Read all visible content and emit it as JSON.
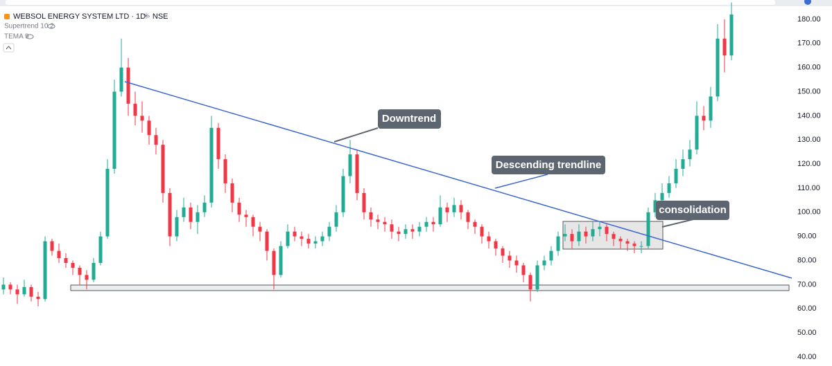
{
  "chart_data": {
    "type": "candlestick",
    "title": "WEBSOL ENERGY SYSTEM LTD · 1D · NSE",
    "indicators": [
      "Supertrend 10 2",
      "TEMA 9"
    ],
    "annotations": [
      "Downtrend",
      "Descending trendline",
      "consolidation"
    ],
    "up_color": "#22ab94",
    "down_color": "#f23645",
    "ylim": [
      37.7,
      188
    ],
    "yticks": [
      {
        "value": 40,
        "label": "40.00"
      },
      {
        "value": 50,
        "label": "50.00"
      },
      {
        "value": 60,
        "label": "60.00"
      },
      {
        "value": 70,
        "label": "70.00"
      },
      {
        "value": 80,
        "label": "80.00"
      },
      {
        "value": 90,
        "label": "90.00"
      },
      {
        "value": 100,
        "label": "100.00"
      },
      {
        "value": 110,
        "label": "110.00"
      },
      {
        "value": 120,
        "label": "120.00"
      },
      {
        "value": 130,
        "label": "130.00"
      },
      {
        "value": 140,
        "label": "140.00"
      },
      {
        "value": 150,
        "label": "150.00"
      },
      {
        "value": 160,
        "label": "160.00"
      },
      {
        "value": 170,
        "label": "170.00"
      },
      {
        "value": 180,
        "label": "180.00"
      }
    ],
    "open": [
      68,
      70,
      68,
      66,
      69,
      65,
      64,
      88,
      84,
      81,
      79,
      77,
      74,
      72,
      79,
      90,
      118,
      150,
      160,
      145,
      140,
      138,
      132,
      128,
      108,
      90,
      98,
      102,
      96,
      100,
      104,
      135,
      122,
      112,
      104,
      99,
      98,
      94,
      92,
      84,
      74,
      86,
      92,
      90,
      89,
      87,
      88,
      90,
      94,
      100,
      115,
      124,
      108,
      100,
      97,
      96,
      95,
      92,
      91,
      93,
      92,
      94,
      96,
      95,
      102,
      100,
      103,
      100,
      96,
      94,
      90,
      88,
      85,
      82,
      80,
      78,
      74,
      68,
      78,
      80,
      84,
      90,
      91,
      88,
      92,
      90,
      93,
      94,
      91,
      89,
      88,
      87,
      86,
      86,
      100,
      105,
      108,
      112,
      118,
      122,
      126,
      140,
      138,
      148,
      172,
      165
    ],
    "high": [
      73,
      71,
      70,
      72,
      70,
      67,
      90,
      89,
      87,
      83,
      80,
      78,
      76,
      81,
      92,
      122,
      155,
      172,
      164,
      150,
      146,
      140,
      135,
      130,
      110,
      101,
      106,
      104,
      103,
      107,
      140,
      137,
      124,
      114,
      106,
      101,
      99,
      96,
      93,
      85,
      88,
      95,
      94,
      92,
      91,
      90,
      92,
      96,
      103,
      118,
      130,
      126,
      110,
      102,
      99,
      98,
      97,
      94,
      95,
      95,
      96,
      98,
      98,
      107,
      104,
      106,
      105,
      101,
      97,
      95,
      92,
      89,
      86,
      84,
      82,
      79,
      75,
      80,
      82,
      86,
      92,
      95,
      93,
      95,
      94,
      96,
      96,
      95,
      92,
      90,
      89,
      88,
      88,
      102,
      108,
      112,
      115,
      122,
      126,
      130,
      146,
      144,
      152,
      178,
      180,
      187
    ],
    "low": [
      66,
      66,
      62,
      65,
      63,
      61,
      63,
      82,
      79,
      77,
      74,
      70,
      68,
      71,
      78,
      89,
      116,
      148,
      140,
      136,
      133,
      128,
      124,
      104,
      86,
      88,
      96,
      93,
      91,
      98,
      102,
      118,
      108,
      100,
      96,
      94,
      90,
      88,
      80,
      68,
      73,
      85,
      88,
      86,
      85,
      85,
      86,
      88,
      92,
      98,
      112,
      105,
      97,
      94,
      93,
      92,
      89,
      88,
      89,
      89,
      90,
      92,
      92,
      94,
      96,
      98,
      97,
      93,
      91,
      87,
      85,
      82,
      79,
      77,
      75,
      71,
      63,
      67,
      76,
      78,
      82,
      88,
      85,
      86,
      87,
      88,
      90,
      88,
      86,
      85,
      84,
      83,
      83,
      85,
      98,
      102,
      106,
      110,
      115,
      119,
      124,
      134,
      135,
      146,
      158,
      163
    ],
    "close": [
      70,
      68,
      66,
      69,
      65,
      64,
      88,
      84,
      81,
      79,
      77,
      74,
      72,
      79,
      90,
      118,
      150,
      160,
      145,
      140,
      138,
      132,
      128,
      108,
      90,
      98,
      102,
      96,
      100,
      104,
      135,
      122,
      112,
      104,
      99,
      98,
      94,
      92,
      84,
      74,
      86,
      92,
      90,
      89,
      87,
      88,
      90,
      94,
      100,
      115,
      124,
      108,
      100,
      97,
      96,
      95,
      92,
      91,
      93,
      92,
      94,
      96,
      95,
      102,
      100,
      103,
      100,
      96,
      94,
      90,
      88,
      85,
      82,
      80,
      78,
      74,
      68,
      78,
      80,
      84,
      90,
      91,
      88,
      92,
      90,
      93,
      94,
      91,
      89,
      88,
      87,
      86,
      86,
      100,
      105,
      108,
      112,
      118,
      122,
      126,
      140,
      138,
      148,
      172,
      165,
      182
    ]
  }
}
